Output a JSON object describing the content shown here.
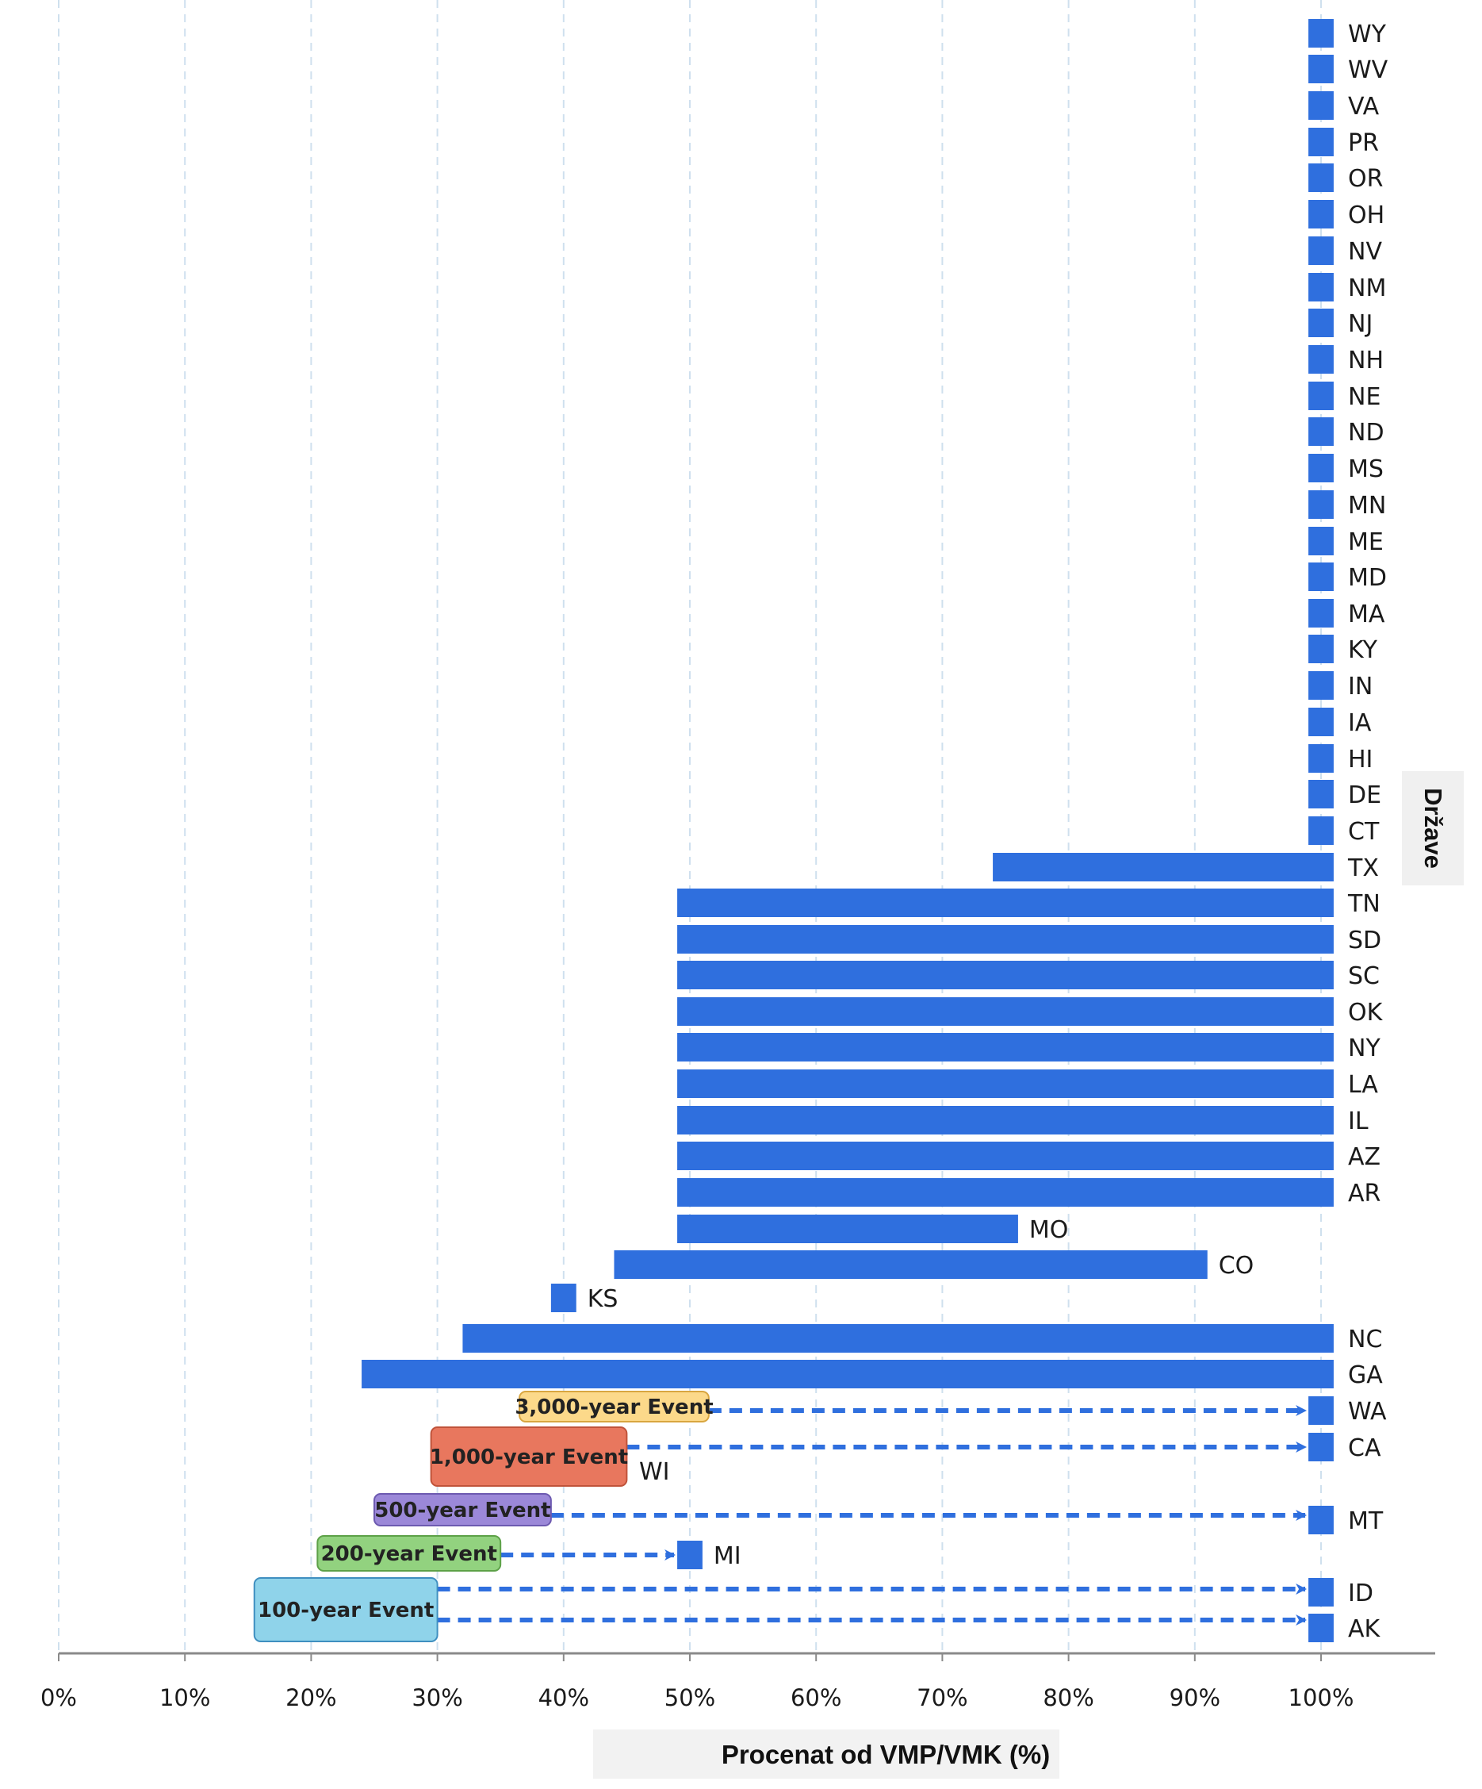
{
  "chart_data": {
    "type": "bar",
    "orientation": "horizontal",
    "title": "",
    "xlabel": "Procenat od VMP/VMK (%)",
    "ylabel": "Države",
    "xlim": [
      0,
      110
    ],
    "xticks": [
      "0%",
      "10%",
      "20%",
      "30%",
      "40%",
      "50%",
      "60%",
      "70%",
      "80%",
      "90%",
      "100%"
    ],
    "grid": "vertical dashed",
    "bar_color": "#2f6fde",
    "bars": [
      {
        "state": "WY",
        "start": 99,
        "end": 101
      },
      {
        "state": "WV",
        "start": 99,
        "end": 101
      },
      {
        "state": "VA",
        "start": 99,
        "end": 101
      },
      {
        "state": "PR",
        "start": 99,
        "end": 101
      },
      {
        "state": "OR",
        "start": 99,
        "end": 101
      },
      {
        "state": "OH",
        "start": 99,
        "end": 101
      },
      {
        "state": "NV",
        "start": 99,
        "end": 101
      },
      {
        "state": "NM",
        "start": 99,
        "end": 101
      },
      {
        "state": "NJ",
        "start": 99,
        "end": 101
      },
      {
        "state": "NH",
        "start": 99,
        "end": 101
      },
      {
        "state": "NE",
        "start": 99,
        "end": 101
      },
      {
        "state": "ND",
        "start": 99,
        "end": 101
      },
      {
        "state": "MS",
        "start": 99,
        "end": 101
      },
      {
        "state": "MN",
        "start": 99,
        "end": 101
      },
      {
        "state": "ME",
        "start": 99,
        "end": 101
      },
      {
        "state": "MD",
        "start": 99,
        "end": 101
      },
      {
        "state": "MA",
        "start": 99,
        "end": 101
      },
      {
        "state": "KY",
        "start": 99,
        "end": 101
      },
      {
        "state": "IN",
        "start": 99,
        "end": 101
      },
      {
        "state": "IA",
        "start": 99,
        "end": 101
      },
      {
        "state": "HI",
        "start": 99,
        "end": 101
      },
      {
        "state": "DE",
        "start": 99,
        "end": 101
      },
      {
        "state": "CT",
        "start": 99,
        "end": 101
      },
      {
        "state": "TX",
        "start": 74,
        "end": 101
      },
      {
        "state": "TN",
        "start": 49,
        "end": 101
      },
      {
        "state": "SD",
        "start": 49,
        "end": 101
      },
      {
        "state": "SC",
        "start": 49,
        "end": 101
      },
      {
        "state": "OK",
        "start": 49,
        "end": 101
      },
      {
        "state": "NY",
        "start": 49,
        "end": 101
      },
      {
        "state": "LA",
        "start": 49,
        "end": 101
      },
      {
        "state": "IL",
        "start": 49,
        "end": 101
      },
      {
        "state": "AZ",
        "start": 49,
        "end": 101
      },
      {
        "state": "AR",
        "start": 49,
        "end": 101
      },
      {
        "state": "MO",
        "start": 49,
        "end": 76
      },
      {
        "state": "CO",
        "start": 44,
        "end": 91
      },
      {
        "state": "KS",
        "start": 39,
        "end": 41
      },
      {
        "state": "NC",
        "start": 32,
        "end": 101
      },
      {
        "state": "GA",
        "start": 24,
        "end": 101
      },
      {
        "state": "WA",
        "start": 99,
        "end": 101
      },
      {
        "state": "CA",
        "start": 99,
        "end": 101
      },
      {
        "state": "WI",
        "start": null,
        "end": null
      },
      {
        "state": "MT",
        "start": 99,
        "end": 101
      },
      {
        "state": "MI",
        "start": 49,
        "end": 51
      },
      {
        "state": "ID",
        "start": 99,
        "end": 101
      },
      {
        "state": "AK",
        "start": 99,
        "end": 101
      }
    ],
    "events": [
      {
        "label": "3,000-year Event",
        "color": "#fcd98a",
        "border": "#d9a640",
        "box": [
          36.5,
          51.5
        ],
        "arrow_to": 99,
        "targets": [
          "WA"
        ]
      },
      {
        "label": "1,000-year Event",
        "color": "#e8775e",
        "border": "#c0533a",
        "box": [
          29.5,
          45
        ],
        "arrow_to": 99,
        "targets": [
          "CA"
        ]
      },
      {
        "label": "500-year Event",
        "color": "#9b88d8",
        "border": "#6d5ab0",
        "box": [
          25,
          39
        ],
        "arrow_to": 99,
        "targets": [
          "MT"
        ]
      },
      {
        "label": "200-year Event",
        "color": "#92d27f",
        "border": "#5da148",
        "box": [
          20.5,
          35
        ],
        "arrow_to": 49,
        "targets": [
          "MI"
        ]
      },
      {
        "label": "100-year Event",
        "color": "#8fd3ea",
        "border": "#3f8fc0",
        "box": [
          15.5,
          30
        ],
        "arrow_to": 99,
        "targets": [
          "ID",
          "AK"
        ]
      }
    ]
  }
}
